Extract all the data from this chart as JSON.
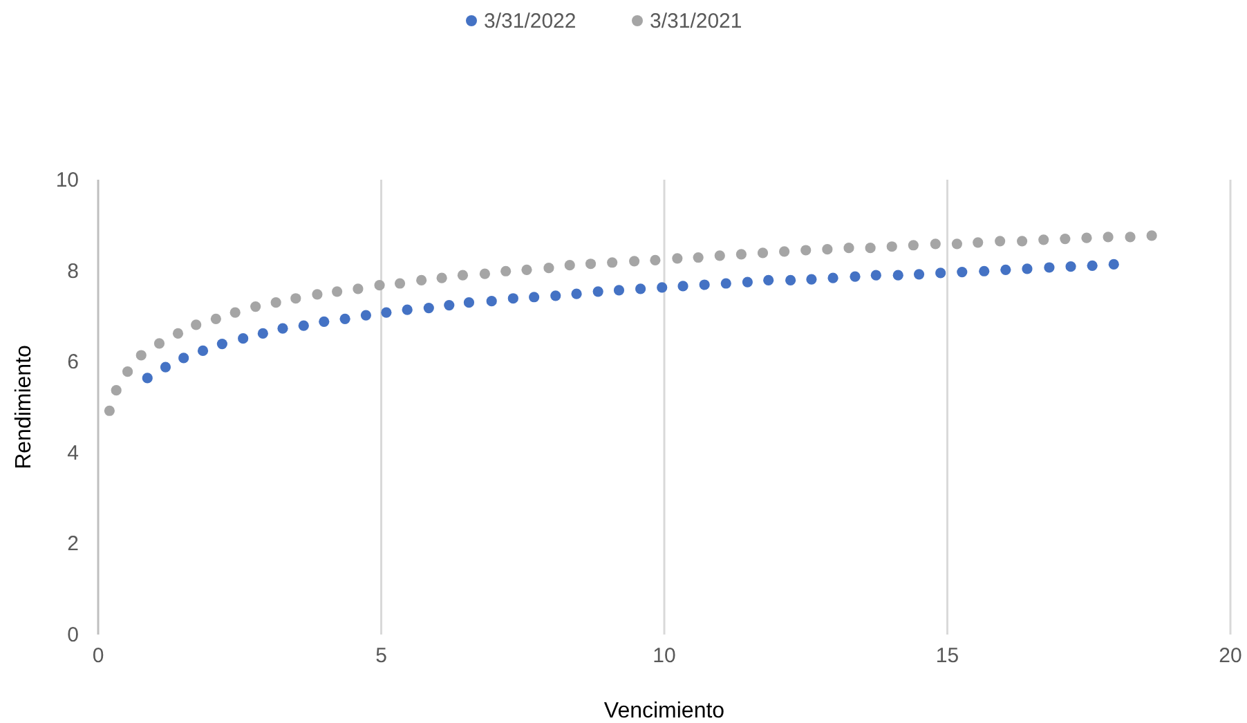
{
  "chart_data": {
    "type": "scatter",
    "xlabel": "Vencimiento",
    "ylabel": "Rendimiento",
    "xlim": [
      0,
      20
    ],
    "xticks": [
      0,
      5,
      10,
      15,
      20
    ],
    "ylim": [
      0,
      10
    ],
    "yticks": [
      0,
      2,
      4,
      6,
      8,
      10
    ],
    "grid": "x",
    "legend": "top",
    "marker": "circle",
    "series": [
      {
        "name": "3/31/2022",
        "color": "#4472c4",
        "x": [
          0.87,
          1.19,
          1.51,
          1.85,
          2.19,
          2.56,
          2.91,
          3.26,
          3.63,
          3.99,
          4.36,
          4.73,
          5.09,
          5.46,
          5.84,
          6.2,
          6.55,
          6.95,
          7.33,
          7.7,
          8.08,
          8.45,
          8.83,
          9.2,
          9.58,
          9.96,
          10.33,
          10.71,
          11.09,
          11.47,
          11.84,
          12.23,
          12.6,
          12.98,
          13.37,
          13.74,
          14.13,
          14.5,
          14.88,
          15.26,
          15.65,
          16.03,
          16.41,
          16.8,
          17.18,
          17.56,
          17.94
        ],
        "values": [
          5.64,
          5.88,
          6.08,
          6.24,
          6.39,
          6.51,
          6.62,
          6.73,
          6.79,
          6.88,
          6.94,
          7.02,
          7.08,
          7.14,
          7.18,
          7.24,
          7.3,
          7.33,
          7.39,
          7.42,
          7.45,
          7.49,
          7.54,
          7.57,
          7.6,
          7.63,
          7.66,
          7.69,
          7.72,
          7.75,
          7.79,
          7.79,
          7.81,
          7.84,
          7.87,
          7.9,
          7.9,
          7.92,
          7.95,
          7.97,
          7.99,
          8.02,
          8.04,
          8.07,
          8.09,
          8.11,
          8.14
        ]
      },
      {
        "name": "3/31/2021",
        "color": "#a5a5a5",
        "x": [
          0.2,
          0.32,
          0.52,
          0.76,
          1.08,
          1.41,
          1.73,
          2.08,
          2.42,
          2.78,
          3.14,
          3.49,
          3.87,
          4.22,
          4.59,
          4.97,
          5.33,
          5.71,
          6.07,
          6.44,
          6.83,
          7.2,
          7.57,
          7.96,
          8.33,
          8.7,
          9.08,
          9.47,
          9.84,
          10.23,
          10.6,
          10.98,
          11.36,
          11.74,
          12.12,
          12.5,
          12.88,
          13.26,
          13.64,
          14.02,
          14.4,
          14.79,
          15.17,
          15.54,
          15.93,
          16.32,
          16.7,
          17.08,
          17.46,
          17.84,
          18.23,
          18.61
        ],
        "values": [
          4.92,
          5.37,
          5.78,
          6.14,
          6.4,
          6.62,
          6.81,
          6.94,
          7.08,
          7.21,
          7.3,
          7.39,
          7.48,
          7.54,
          7.6,
          7.68,
          7.72,
          7.79,
          7.84,
          7.9,
          7.93,
          7.99,
          8.02,
          8.06,
          8.12,
          8.15,
          8.18,
          8.21,
          8.23,
          8.27,
          8.29,
          8.33,
          8.36,
          8.39,
          8.42,
          8.45,
          8.47,
          8.5,
          8.5,
          8.53,
          8.56,
          8.59,
          8.59,
          8.62,
          8.65,
          8.65,
          8.68,
          8.7,
          8.72,
          8.74,
          8.74,
          8.77
        ]
      }
    ]
  }
}
